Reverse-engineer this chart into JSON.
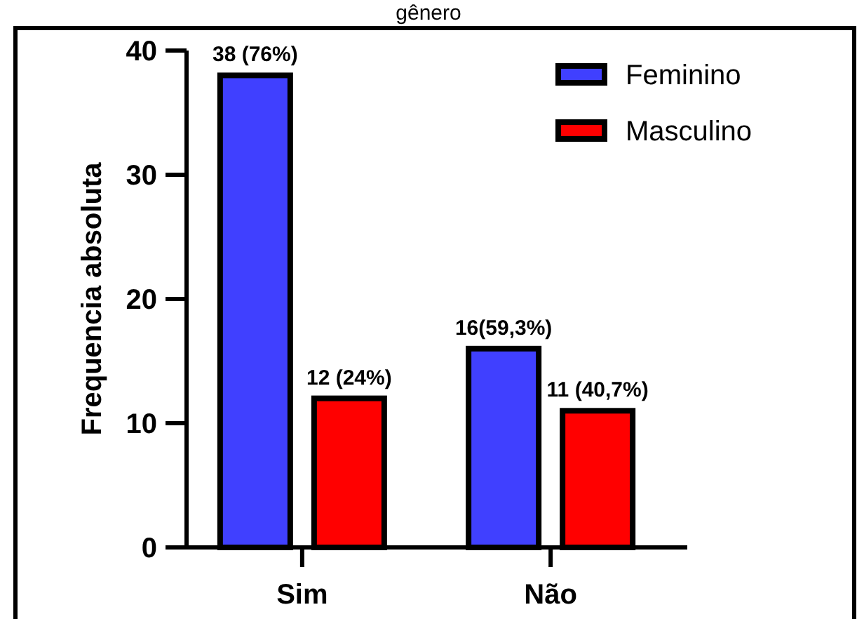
{
  "chart_data": {
    "type": "bar",
    "title": "gênero",
    "ylabel": "Frequencia absoluta",
    "categories": [
      "Sim",
      "Não"
    ],
    "series": [
      {
        "name": "Feminino",
        "color": "#4040ff",
        "values": [
          38,
          16
        ],
        "value_labels": [
          "38 (76%)",
          "16(59,3%)"
        ]
      },
      {
        "name": "Masculino",
        "color": "#ff0000",
        "values": [
          12,
          11
        ],
        "value_labels": [
          "12 (24%)",
          "11 (40,7%)"
        ]
      }
    ],
    "ylim": [
      0,
      40
    ],
    "yticks": [
      0,
      10,
      20,
      30,
      40
    ],
    "grid": false,
    "legend": "top right"
  }
}
